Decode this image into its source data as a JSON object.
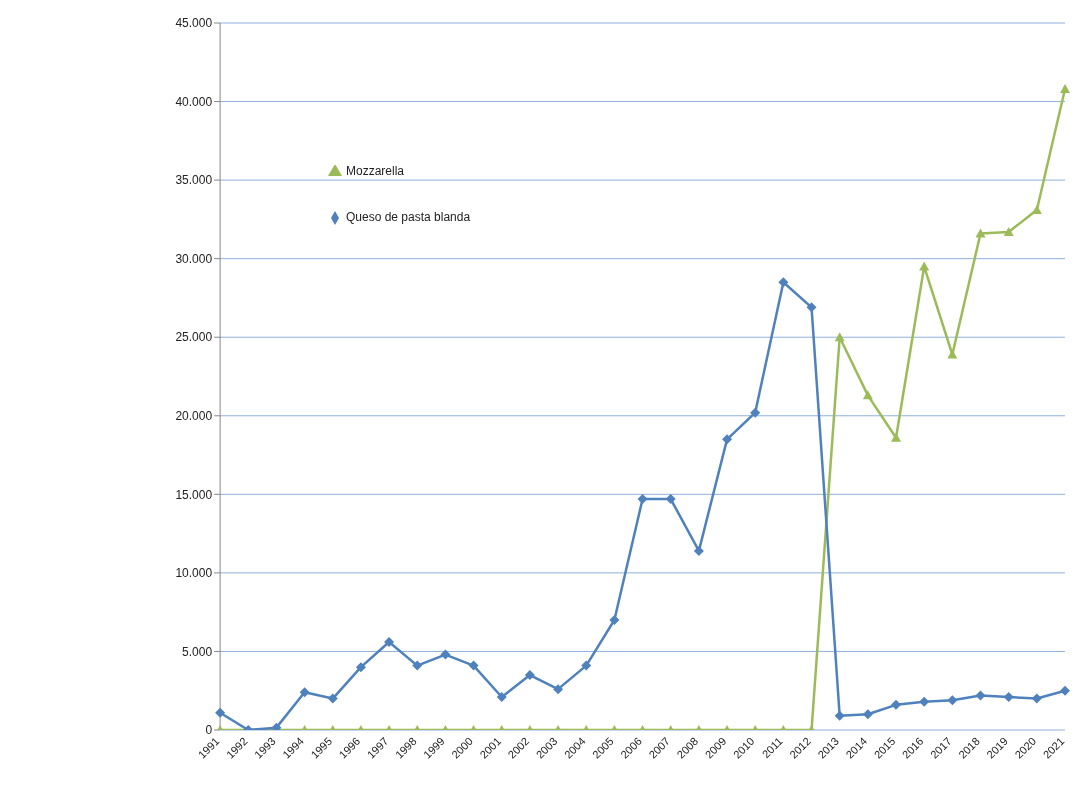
{
  "chart_data": {
    "type": "line",
    "categories": [
      "1991",
      "1992",
      "1993",
      "1994",
      "1995",
      "1996",
      "1997",
      "1998",
      "1999",
      "2000",
      "2001",
      "2002",
      "2003",
      "2004",
      "2005",
      "2006",
      "2007",
      "2008",
      "2009",
      "2010",
      "2011",
      "2012",
      "2013",
      "2014",
      "2015",
      "2016",
      "2017",
      "2018",
      "2019",
      "2020",
      "2021"
    ],
    "series": [
      {
        "name": "Mozzarella",
        "color": "#9bbb59",
        "marker": "triangle",
        "values": [
          0,
          0,
          0,
          0,
          0,
          0,
          0,
          0,
          0,
          0,
          0,
          0,
          0,
          0,
          0,
          0,
          0,
          0,
          0,
          0,
          0,
          0,
          25000,
          21300,
          18600,
          29500,
          23900,
          31600,
          31700,
          33100,
          40800
        ]
      },
      {
        "name": "Queso de pasta blanda",
        "color": "#4f81bd",
        "marker": "diamond",
        "values": [
          1100,
          0,
          150,
          2400,
          2000,
          4000,
          5600,
          4100,
          4800,
          4100,
          2100,
          3500,
          2600,
          4100,
          7000,
          14700,
          14700,
          11400,
          18500,
          20200,
          28500,
          26900,
          900,
          1000,
          1600,
          1800,
          1900,
          2200,
          2100,
          2000,
          2500
        ]
      }
    ],
    "ylim": [
      0,
      45000
    ],
    "yticks": [
      {
        "value": 0,
        "label": "0"
      },
      {
        "value": 5000,
        "label": "5.000"
      },
      {
        "value": 10000,
        "label": "10.000"
      },
      {
        "value": 15000,
        "label": "15.000"
      },
      {
        "value": 20000,
        "label": "20.000"
      },
      {
        "value": 25000,
        "label": "25.000"
      },
      {
        "value": 30000,
        "label": "30.000"
      },
      {
        "value": 35000,
        "label": "35.000"
      },
      {
        "value": 40000,
        "label": "40.000"
      },
      {
        "value": 45000,
        "label": "45.000"
      }
    ],
    "grid": "y",
    "legend": "top left"
  }
}
